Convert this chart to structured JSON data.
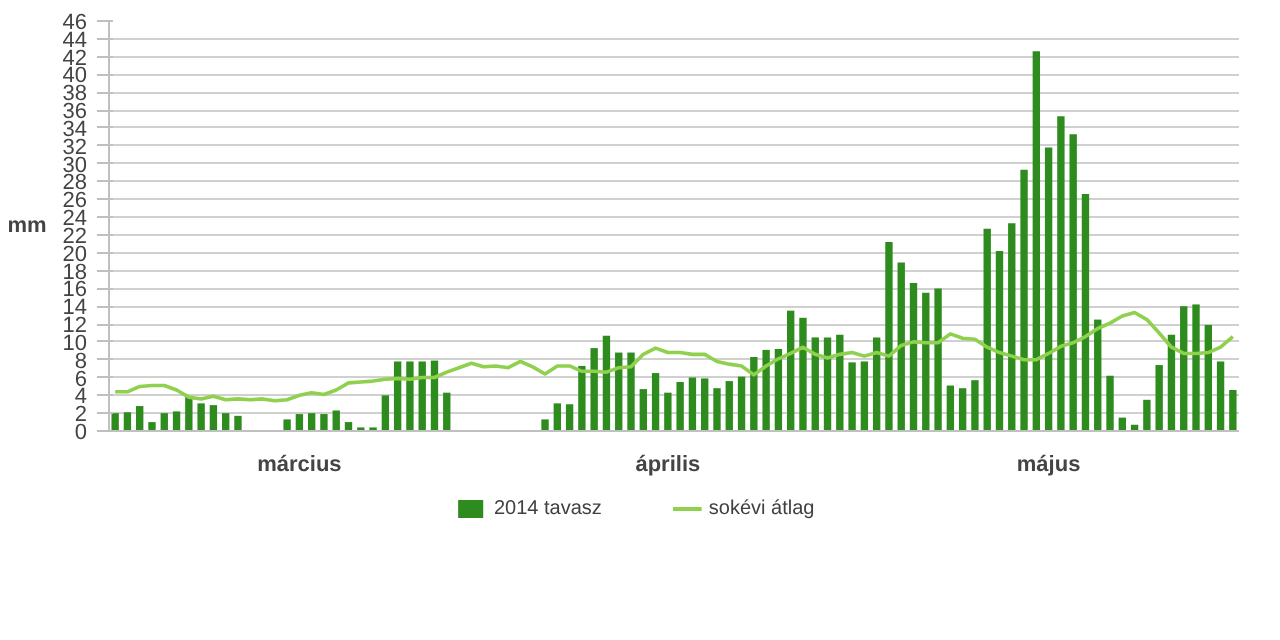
{
  "chart_data": {
    "type": "bar",
    "ylabel": "mm",
    "categories": [
      null,
      null,
      null,
      null,
      null,
      null,
      null,
      null,
      null,
      null,
      null,
      null,
      null,
      null,
      null,
      "március",
      null,
      null,
      null,
      null,
      null,
      null,
      null,
      null,
      null,
      null,
      null,
      null,
      null,
      null,
      null,
      null,
      null,
      null,
      null,
      null,
      null,
      null,
      null,
      null,
      null,
      null,
      null,
      null,
      null,
      "április",
      null,
      null,
      null,
      null,
      null,
      null,
      null,
      null,
      null,
      null,
      null,
      null,
      null,
      null,
      null,
      null,
      null,
      null,
      null,
      null,
      null,
      null,
      null,
      null,
      null,
      null,
      null,
      null,
      null,
      null,
      "május",
      null,
      null,
      null,
      null,
      null,
      null,
      null,
      null,
      null,
      null,
      null,
      null,
      null,
      null,
      null
    ],
    "series": [
      {
        "name": "2014 tavasz",
        "color": "#2e8b1e",
        "values": [
          2.0,
          2.1,
          2.8,
          1.0,
          2.0,
          2.2,
          3.8,
          3.1,
          2.9,
          2.0,
          1.7,
          0,
          0,
          0,
          1.3,
          1.9,
          2.0,
          1.9,
          2.3,
          1.0,
          0.4,
          0.4,
          4.0,
          7.8,
          7.8,
          7.8,
          7.9,
          4.3,
          0,
          0,
          0,
          0,
          0,
          0,
          0,
          1.3,
          3.1,
          3.0,
          7.3,
          9.3,
          10.7,
          8.8,
          8.8,
          4.7,
          6.5,
          4.3,
          5.5,
          6.0,
          5.9,
          4.8,
          5.6,
          6.1,
          8.3,
          9.1,
          9.2,
          13.5,
          12.7,
          10.5,
          10.5,
          10.8,
          7.7,
          7.8,
          10.5,
          21.2,
          18.9,
          16.6,
          15.5,
          16.0,
          5.1,
          4.8,
          5.7,
          22.7,
          20.2,
          23.3,
          29.3,
          42.6,
          31.8,
          35.3,
          33.3,
          26.6,
          12.5,
          6.2,
          1.5,
          0.7,
          3.5,
          7.4,
          10.8,
          14.0,
          14.2,
          11.9,
          7.8,
          4.6
        ]
      },
      {
        "name": "sokévi átlag",
        "type": "line",
        "color": "#8fd14f",
        "values": [
          4.4,
          4.4,
          5.0,
          5.1,
          5.1,
          4.6,
          3.8,
          3.6,
          3.9,
          3.5,
          3.6,
          3.5,
          3.6,
          3.4,
          3.5,
          4.0,
          4.3,
          4.1,
          4.6,
          5.4,
          5.5,
          5.6,
          5.8,
          5.9,
          5.8,
          6.0,
          6.0,
          6.6,
          7.1,
          7.6,
          7.2,
          7.3,
          7.1,
          7.8,
          7.2,
          6.4,
          7.3,
          7.3,
          6.7,
          6.7,
          6.6,
          7.1,
          7.2,
          8.6,
          9.3,
          8.8,
          8.8,
          8.6,
          8.6,
          7.8,
          7.5,
          7.3,
          6.3,
          7.3,
          8.1,
          8.7,
          9.4,
          8.6,
          8.2,
          8.6,
          8.8,
          8.4,
          8.8,
          8.4,
          9.6,
          10.0,
          9.9,
          9.9,
          10.9,
          10.4,
          10.3,
          9.4,
          8.8,
          8.4,
          8.0,
          8.0,
          8.7,
          9.5,
          9.9,
          10.6,
          11.5,
          12.1,
          12.9,
          13.3,
          12.5,
          11.0,
          9.4,
          8.7,
          8.7,
          8.8,
          9.4,
          10.6
        ]
      }
    ],
    "ylim": [
      0,
      46
    ],
    "yticks": [
      0,
      2,
      4,
      6,
      8,
      10,
      12,
      14,
      16,
      18,
      20,
      22,
      24,
      26,
      28,
      30,
      32,
      34,
      36,
      38,
      40,
      42,
      44,
      46
    ],
    "grid": "y",
    "legend": "bottom"
  }
}
